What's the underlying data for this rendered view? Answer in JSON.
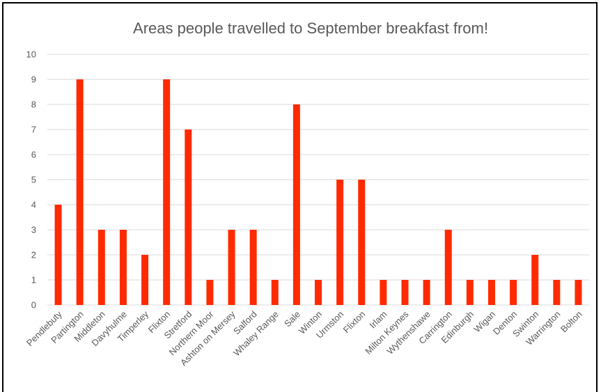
{
  "chart_data": {
    "type": "bar",
    "title": "Areas people travelled to September breakfast from!",
    "xlabel": "",
    "ylabel": "",
    "ylim": [
      0,
      10
    ],
    "yticks": [
      0,
      1,
      2,
      3,
      4,
      5,
      6,
      7,
      8,
      9,
      10
    ],
    "grid": true,
    "legend": "none",
    "bar_color": "#ff2a00",
    "categories": [
      "Pendlebuty",
      "Partington",
      "Middleton",
      "Davyhulme",
      "Timperley",
      "Flixton",
      "Stretford",
      "Northern Moor",
      "Ashton on Mersey",
      "Salford",
      "Whaley Range",
      "Sale",
      "Winton",
      "Urmston",
      "Flixton",
      "Irlam",
      "Milton Keynes",
      "Wythenshawe",
      "Carrington",
      "Edinburgh",
      "Wigan",
      "Denton",
      "Swinton",
      "Warrington",
      "Bolton"
    ],
    "values": [
      4,
      9,
      3,
      3,
      2,
      9,
      7,
      1,
      3,
      3,
      1,
      8,
      1,
      5,
      5,
      1,
      1,
      1,
      3,
      1,
      1,
      1,
      2,
      1,
      1
    ]
  }
}
